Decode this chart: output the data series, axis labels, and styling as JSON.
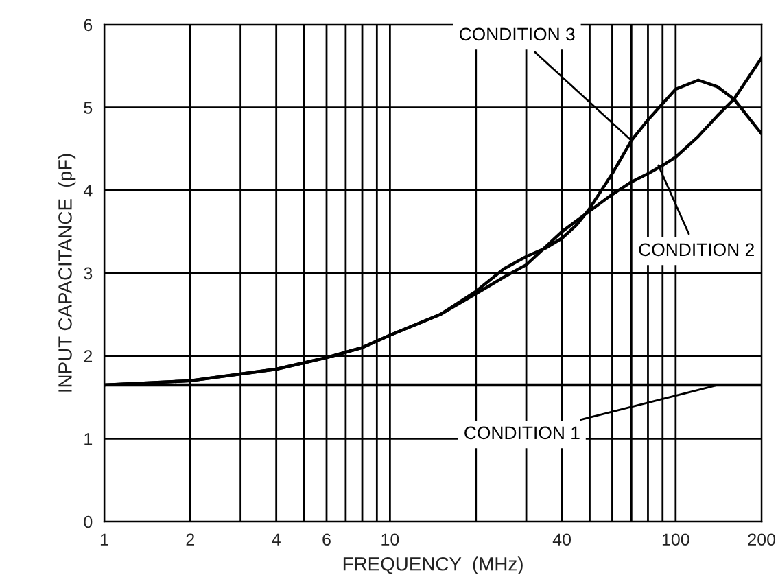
{
  "chart_data": {
    "type": "line",
    "xlabel": "FREQUENCY  (MHz)",
    "ylabel": "INPUT CAPACITANCE  (pF)",
    "log": "x",
    "grid": true,
    "line_style": "solid",
    "marker": "none",
    "xlim": [
      1,
      200
    ],
    "ylim": [
      0,
      6
    ],
    "xticks": [
      1,
      2,
      {
        "value": 3,
        "label": null
      },
      4,
      {
        "value": 5,
        "label": null
      },
      6,
      {
        "value": 7,
        "label": null
      },
      {
        "value": 8,
        "label": null
      },
      {
        "value": 9,
        "label": null
      },
      10,
      {
        "value": 20,
        "label": null
      },
      {
        "value": 30,
        "label": null
      },
      40,
      {
        "value": 50,
        "label": null
      },
      {
        "value": 60,
        "label": null
      },
      {
        "value": 70,
        "label": null
      },
      {
        "value": 80,
        "label": null
      },
      {
        "value": 90,
        "label": null
      },
      100,
      200
    ],
    "yticks": [
      0,
      1,
      2,
      3,
      4,
      5,
      6
    ],
    "series": [
      {
        "color": "#000000",
        "x": [
          1,
          200
        ],
        "values": [
          1.65,
          1.65
        ]
      },
      {
        "color": "#000000",
        "x": [
          1,
          2,
          4,
          6,
          8,
          10,
          15,
          20,
          25,
          30,
          40,
          50,
          60,
          70,
          80,
          90,
          100,
          120,
          140,
          160,
          200
        ],
        "values": [
          1.65,
          1.7,
          1.84,
          1.98,
          2.1,
          2.25,
          2.5,
          2.75,
          2.95,
          3.1,
          3.5,
          3.75,
          3.95,
          4.1,
          4.2,
          4.3,
          4.4,
          4.65,
          4.9,
          5.1,
          5.6
        ]
      },
      {
        "color": "#000000",
        "x": [
          1,
          2,
          4,
          6,
          8,
          10,
          15,
          20,
          25,
          30,
          35,
          40,
          45,
          50,
          60,
          70,
          80,
          100,
          120,
          140,
          160,
          200
        ],
        "values": [
          1.65,
          1.7,
          1.84,
          1.98,
          2.1,
          2.25,
          2.5,
          2.78,
          3.05,
          3.2,
          3.3,
          3.42,
          3.58,
          3.78,
          4.2,
          4.6,
          4.85,
          5.22,
          5.33,
          5.25,
          5.1,
          4.68
        ]
      }
    ],
    "annotations": [
      {
        "text": "CONDITION 1",
        "x": 141,
        "y": 1.65
      },
      {
        "text": "CONDITION 2",
        "x": 87,
        "y": 4.3
      },
      {
        "text": "CONDITION 3",
        "x": 70,
        "y": 4.6
      }
    ]
  }
}
